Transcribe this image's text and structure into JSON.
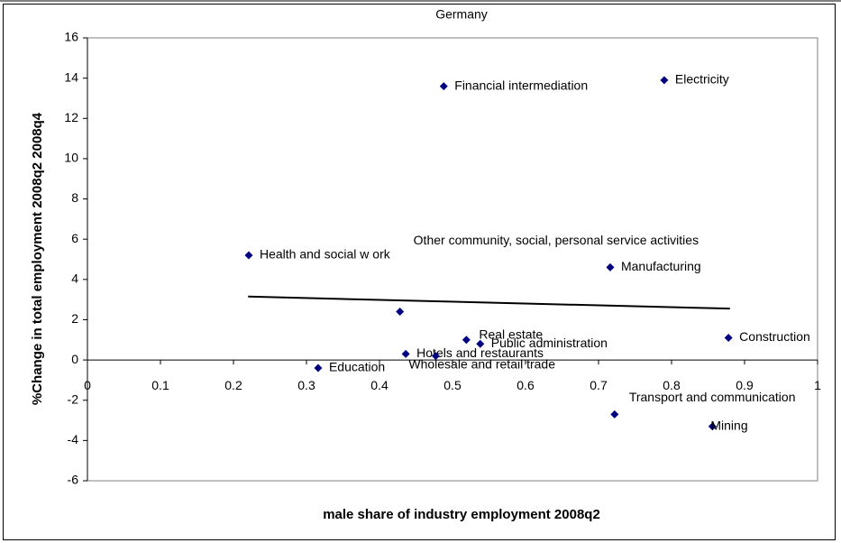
{
  "chart_data": {
    "type": "scatter",
    "title": "Germany",
    "xlabel": "male share of industry employment 2008q2",
    "ylabel": "%Change in total employment 2008q2 2008q4",
    "categories": [
      "Health and social w ork",
      "Education",
      "Other community, social, personal service activities",
      "Hotels and restaurants",
      "Wholesale and retail trade",
      "Financial intermediation",
      "Real estate",
      "Public administration",
      "Manufacturing",
      "Electricity",
      "Transport and communication",
      "Mining",
      "Construction"
    ],
    "x": [
      0.221,
      0.316,
      0.428,
      0.436,
      0.477,
      0.488,
      0.519,
      0.538,
      0.716,
      0.79,
      0.722,
      0.856,
      0.878
    ],
    "values": [
      5.2,
      -0.4,
      2.4,
      0.3,
      0.2,
      13.6,
      1.0,
      0.8,
      4.6,
      13.9,
      -2.7,
      -3.3,
      1.1
    ],
    "color": "#000080",
    "trendline": {
      "x": [
        0.22,
        0.88
      ],
      "y": [
        3.15,
        2.55
      ]
    },
    "xlim": [
      0,
      1
    ],
    "xticks": [
      0,
      0.1,
      0.2,
      0.3,
      0.4,
      0.5,
      0.6,
      0.7,
      0.8,
      0.9,
      1
    ],
    "ylim": [
      -6,
      16
    ],
    "yticks": [
      -6,
      -4,
      -2,
      0,
      2,
      4,
      6,
      8,
      10,
      12,
      14,
      16
    ],
    "grid": false
  }
}
